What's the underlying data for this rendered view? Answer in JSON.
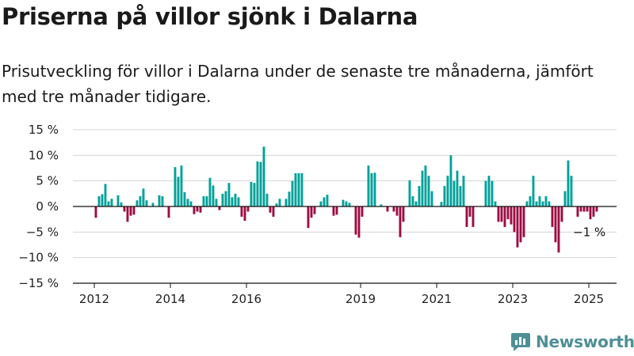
{
  "header": {
    "title": "Priserna på villor sjönk i Dalarna",
    "subtitle": "Prisutveckling för villor i Dalarna under de senaste tre månaderna, jämfört med tre månader tidigare."
  },
  "branding": {
    "name": "Newsworthy",
    "icon": "newsworthy-logo-icon",
    "color": "#4f8f97"
  },
  "colors": {
    "positive": "#00a19a",
    "negative": "#9c0c43"
  },
  "chart_data": {
    "type": "bar",
    "ylim": [
      -15,
      15
    ],
    "yticks": [
      15,
      10,
      5,
      0,
      -5,
      -10,
      -15
    ],
    "ytick_labels": [
      "15 %",
      "10 %",
      "5 %",
      "0 %",
      "−5 %",
      "−10 %",
      "−15 %"
    ],
    "xticks": [
      {
        "label": "2012",
        "year": 2012
      },
      {
        "label": "2014",
        "year": 2014
      },
      {
        "label": "2016",
        "year": 2016
      },
      {
        "label": "2019",
        "year": 2019
      },
      {
        "label": "2021",
        "year": 2021
      },
      {
        "label": "2023",
        "year": 2023
      },
      {
        "label": "2025",
        "year": 2025
      }
    ],
    "start": "2012-01",
    "frequency": "monthly",
    "annotation": {
      "text": "−1 %",
      "month": "2025-01"
    },
    "values": [
      -2.2,
      2.0,
      2.4,
      4.4,
      1.0,
      1.5,
      0.0,
      2.2,
      0.8,
      -1.0,
      -3.0,
      -1.8,
      -1.6,
      1.2,
      2.0,
      3.5,
      1.2,
      0.0,
      0.7,
      0.0,
      2.2,
      2.0,
      0.0,
      -2.2,
      0.0,
      7.7,
      5.8,
      8.0,
      2.8,
      1.5,
      1.0,
      -1.5,
      -1.0,
      -1.2,
      2.0,
      2.0,
      5.6,
      4.1,
      1.5,
      -0.7,
      2.5,
      3.0,
      4.6,
      1.8,
      2.5,
      1.8,
      -2.0,
      -2.8,
      -1.0,
      4.8,
      4.6,
      8.8,
      8.7,
      11.7,
      2.5,
      -1.2,
      -2.0,
      0.6,
      1.5,
      0.0,
      1.5,
      2.9,
      5.0,
      6.5,
      6.5,
      6.5,
      0.0,
      -4.2,
      -2.2,
      -1.5,
      0.0,
      1.0,
      1.8,
      2.3,
      0.0,
      -1.8,
      -1.6,
      0.0,
      1.3,
      1.0,
      0.7,
      0.0,
      -5.5,
      -6.1,
      -2.0,
      0.0,
      8.0,
      6.5,
      6.6,
      0.0,
      0.4,
      0.0,
      -1.0,
      0.0,
      -1.0,
      -1.8,
      -6.0,
      -3.0,
      0.0,
      5.1,
      2.0,
      1.0,
      4.0,
      7.0,
      8.0,
      6.0,
      3.0,
      0.0,
      0.0,
      0.9,
      4.0,
      6.0,
      10.0,
      5.0,
      7.0,
      4.0,
      6.0,
      -4.0,
      -2.0,
      -4.0,
      0.0,
      0.0,
      0.0,
      5.0,
      6.0,
      5.0,
      1.0,
      -3.0,
      -3.0,
      -4.0,
      -2.5,
      -3.5,
      -5.0,
      -8.0,
      -7.0,
      -6.0,
      1.0,
      2.0,
      6.0,
      1.0,
      2.0,
      1.0,
      2.0,
      1.0,
      -4.0,
      -7.0,
      -9.0,
      -3.0,
      3.0,
      9.0,
      6.0,
      0.0,
      -2.0,
      -1.0,
      -1.0,
      -1.0,
      -2.5,
      -2.0,
      -1.0
    ]
  }
}
